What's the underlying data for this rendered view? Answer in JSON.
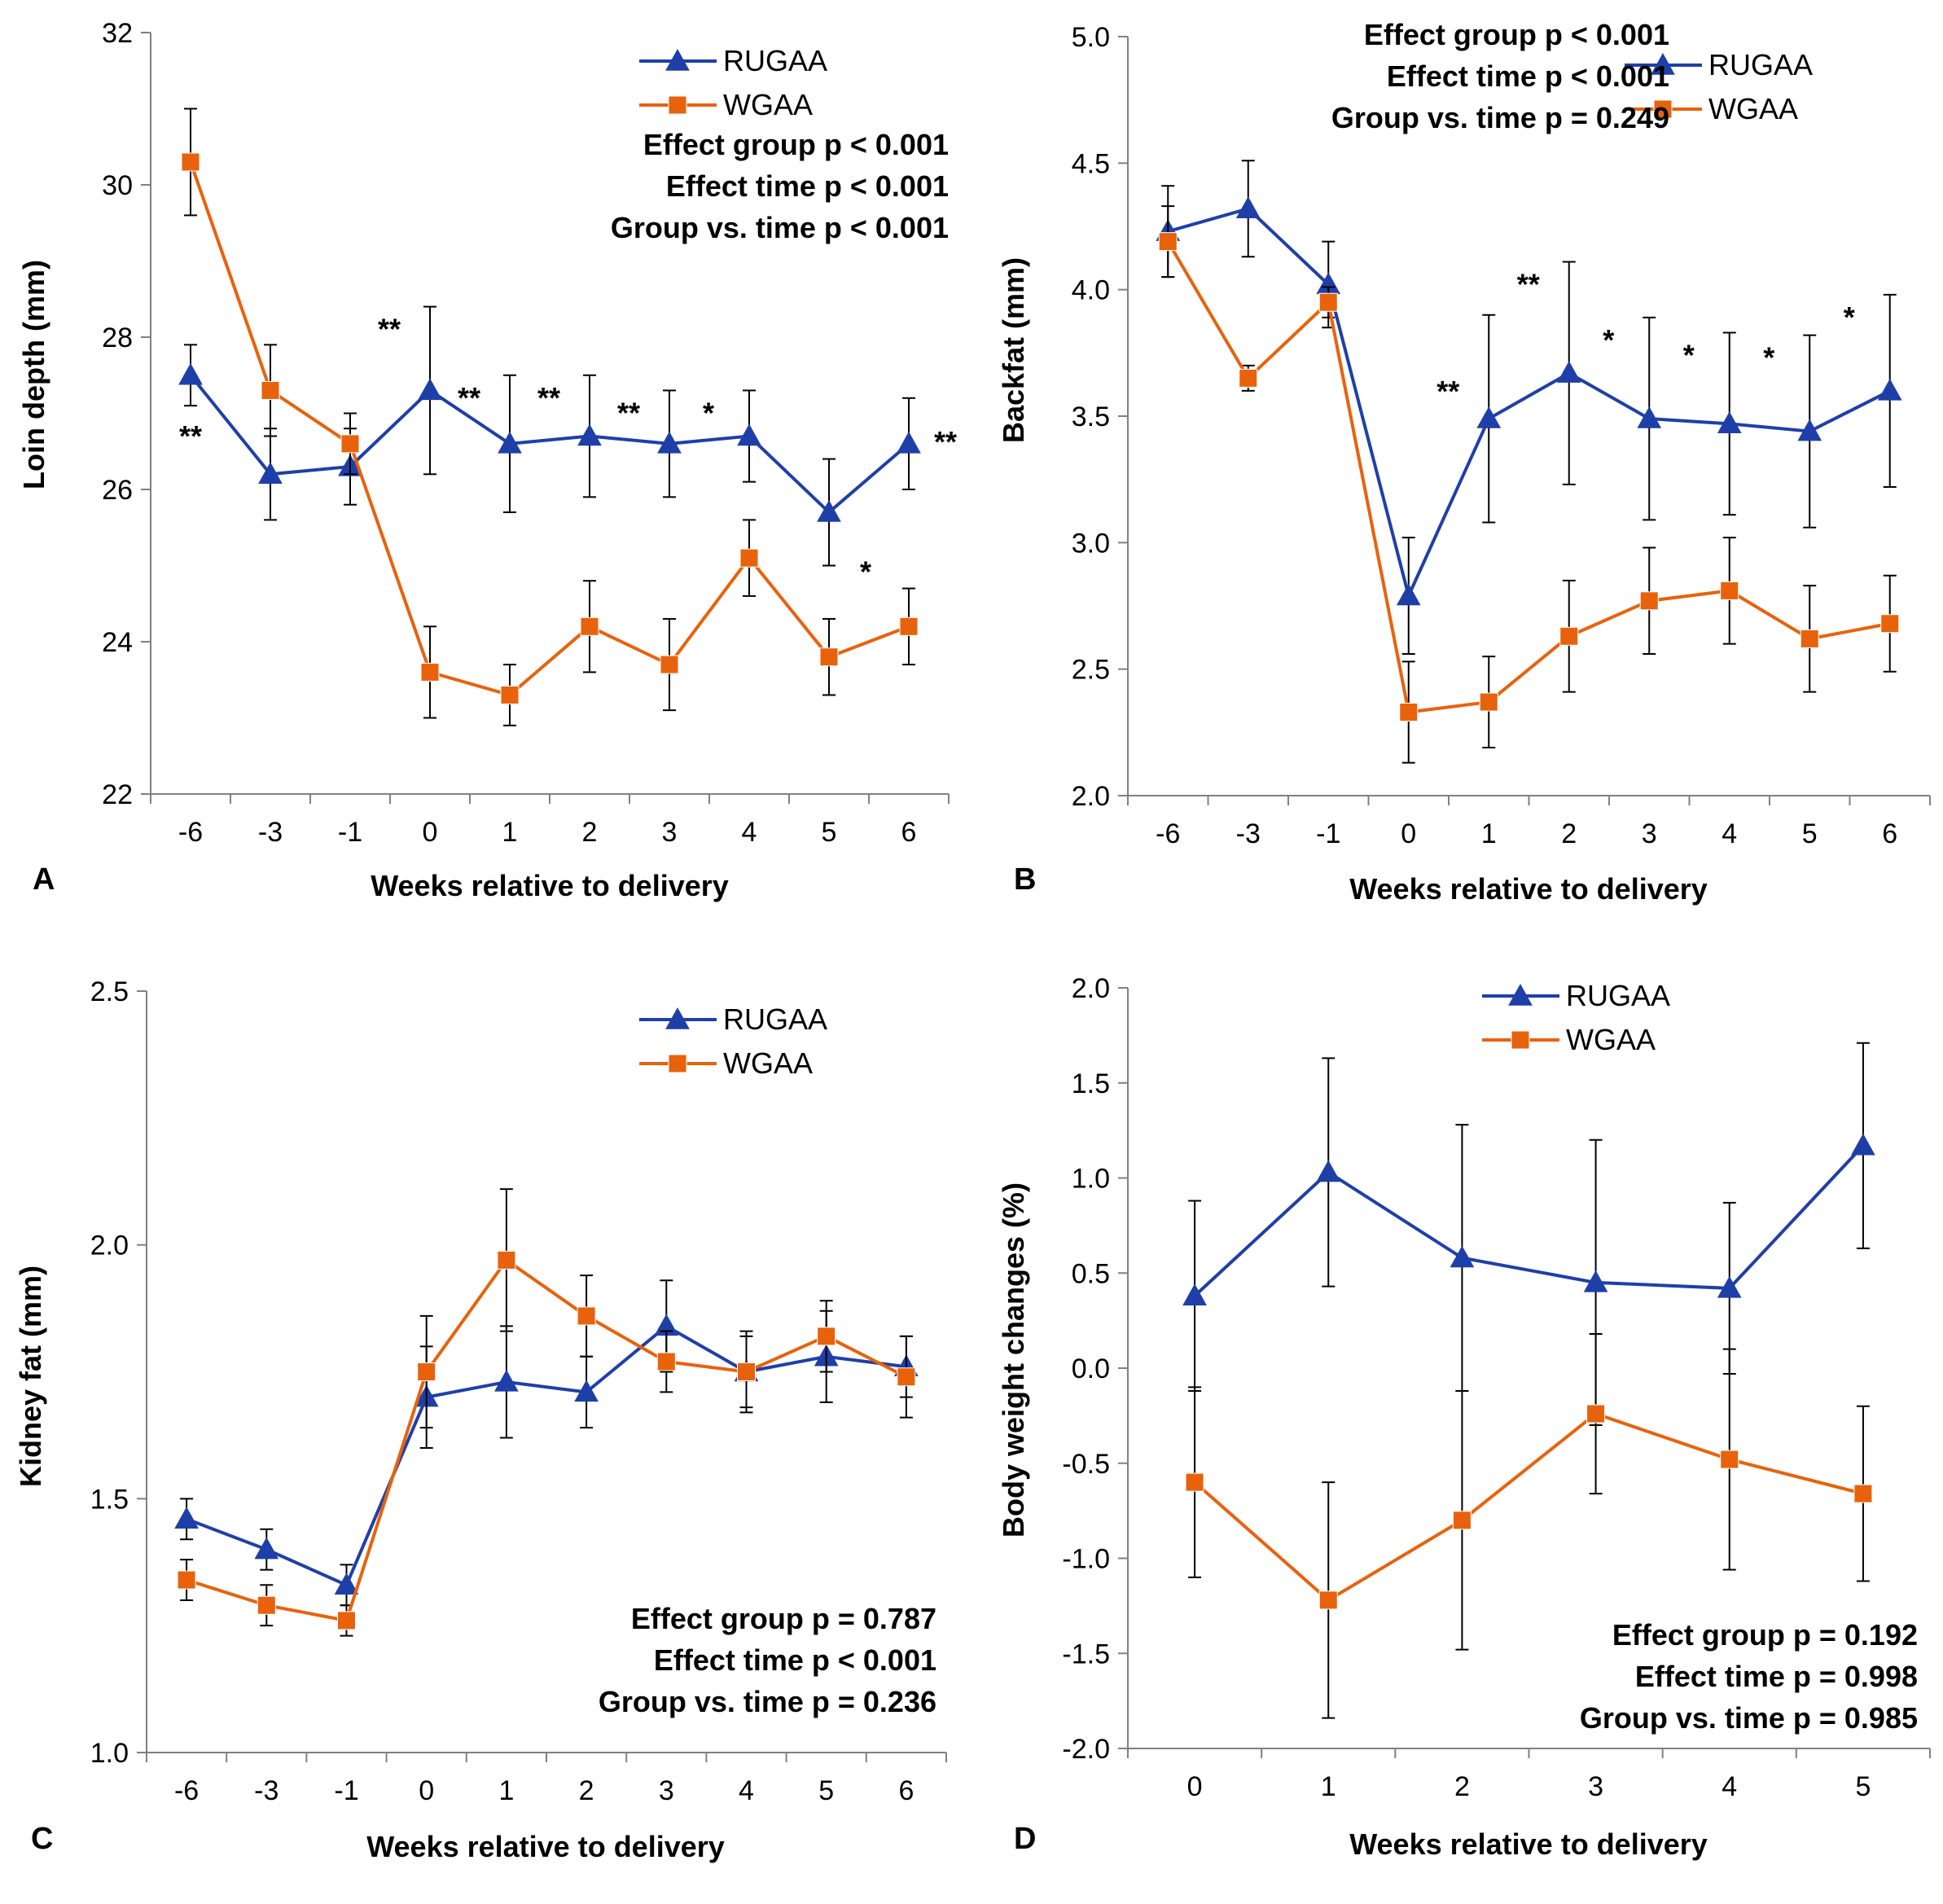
{
  "colors": {
    "RUGAA": "#1f3fa8",
    "WGAA": "#e8620c",
    "axis": "#808080",
    "errorbar": "#000000"
  },
  "chart_data": [
    {
      "panel": "A",
      "type": "line",
      "xlabel": "Weeks relative to delivery",
      "ylabel": "Loin depth (mm)",
      "ylim": [
        22,
        32
      ],
      "yticks": [
        22,
        24,
        26,
        28,
        30,
        32
      ],
      "ytick_labels": [
        "22",
        "24",
        "26",
        "28",
        "30",
        "32"
      ],
      "categories": [
        "-6",
        "-3",
        "-1",
        "0",
        "1",
        "2",
        "3",
        "4",
        "5",
        "6"
      ],
      "legend": [
        "RUGAA",
        "WGAA"
      ],
      "series": [
        {
          "name": "RUGAA",
          "marker": "triangle",
          "values": [
            27.5,
            26.2,
            26.3,
            27.3,
            26.6,
            26.7,
            26.6,
            26.7,
            25.7,
            26.6
          ],
          "err": [
            0.4,
            0.6,
            0.5,
            1.1,
            0.9,
            0.8,
            0.7,
            0.6,
            0.7,
            0.6
          ]
        },
        {
          "name": "WGAA",
          "marker": "square",
          "values": [
            30.3,
            27.3,
            26.6,
            23.6,
            23.3,
            24.2,
            23.7,
            25.1,
            23.8,
            24.2
          ],
          "err": [
            0.7,
            0.6,
            0.4,
            0.6,
            0.4,
            0.6,
            0.6,
            0.5,
            0.5,
            0.5
          ]
        }
      ],
      "stats": [
        "Effect group p < 0.001",
        "Effect time p < 0.001",
        "Group vs. time p < 0.001"
      ],
      "significance": [
        {
          "x": "-6",
          "text": "**"
        },
        {
          "x": "0",
          "text": "**"
        },
        {
          "x": "1",
          "text": "**"
        },
        {
          "x": "2",
          "text": "**"
        },
        {
          "x": "3",
          "text": "**"
        },
        {
          "x": "4",
          "text": "*"
        },
        {
          "x": "5",
          "text": "*"
        },
        {
          "x": "6",
          "text": "**"
        }
      ]
    },
    {
      "panel": "B",
      "type": "line",
      "xlabel": "Weeks relative to delivery",
      "ylabel": "Backfat (mm)",
      "ylim": [
        2.0,
        5.0
      ],
      "yticks": [
        2.0,
        2.5,
        3.0,
        3.5,
        4.0,
        4.5,
        5.0
      ],
      "ytick_labels": [
        "2.0",
        "2.5",
        "3.0",
        "3.5",
        "4.0",
        "4.5",
        "5.0"
      ],
      "categories": [
        "-6",
        "-3",
        "-1",
        "0",
        "1",
        "2",
        "3",
        "4",
        "5",
        "6"
      ],
      "legend": [
        "RUGAA",
        "WGAA"
      ],
      "series": [
        {
          "name": "RUGAA",
          "marker": "triangle",
          "values": [
            4.23,
            4.32,
            4.02,
            2.79,
            3.49,
            3.67,
            3.49,
            3.47,
            3.44,
            3.6
          ],
          "err": [
            0.18,
            0.19,
            0.17,
            0.23,
            0.41,
            0.44,
            0.4,
            0.36,
            0.38,
            0.38
          ]
        },
        {
          "name": "WGAA",
          "marker": "square",
          "values": [
            4.19,
            3.65,
            3.95,
            2.33,
            2.37,
            2.63,
            2.77,
            2.81,
            2.62,
            2.68
          ],
          "err": [
            0.14,
            0.05,
            0.06,
            0.2,
            0.18,
            0.22,
            0.21,
            0.21,
            0.21,
            0.19
          ]
        }
      ],
      "stats": [
        "Effect group p < 0.001",
        "Effect time p < 0.001",
        "Group vs. time p = 0.249"
      ],
      "significance": [
        {
          "x": "1",
          "text": "**"
        },
        {
          "x": "2",
          "text": "**"
        },
        {
          "x": "3",
          "text": "*"
        },
        {
          "x": "4",
          "text": "*"
        },
        {
          "x": "5",
          "text": "*"
        },
        {
          "x": "6",
          "text": "*"
        }
      ]
    },
    {
      "panel": "C",
      "type": "line",
      "xlabel": "Weeks relative to delivery",
      "ylabel": "Kidney fat (mm)",
      "ylim": [
        1.0,
        2.5
      ],
      "yticks": [
        1.0,
        1.5,
        2.0,
        2.5
      ],
      "ytick_labels": [
        "1.0",
        "1.5",
        "2.0",
        "2.5"
      ],
      "categories": [
        "-6",
        "-3",
        "-1",
        "0",
        "1",
        "2",
        "3",
        "4",
        "5",
        "6"
      ],
      "legend": [
        "RUGAA",
        "WGAA"
      ],
      "series": [
        {
          "name": "RUGAA",
          "marker": "triangle",
          "values": [
            1.46,
            1.4,
            1.33,
            1.7,
            1.73,
            1.71,
            1.84,
            1.75,
            1.78,
            1.76
          ],
          "err": [
            0.04,
            0.04,
            0.04,
            0.1,
            0.11,
            0.07,
            0.09,
            0.08,
            0.09,
            0.06
          ]
        },
        {
          "name": "WGAA",
          "marker": "square",
          "values": [
            1.34,
            1.29,
            1.26,
            1.75,
            1.97,
            1.86,
            1.77,
            1.75,
            1.82,
            1.74
          ],
          "err": [
            0.04,
            0.04,
            0.03,
            0.11,
            0.14,
            0.08,
            0.06,
            0.07,
            0.07,
            0.08
          ]
        }
      ],
      "stats": [
        "Effect group p = 0.787",
        "Effect time p < 0.001",
        "Group vs. time p = 0.236"
      ],
      "significance": []
    },
    {
      "panel": "D",
      "type": "line",
      "xlabel": "Weeks relative to delivery",
      "ylabel": "Body weight changes (%)",
      "ylim": [
        -2.0,
        2.0
      ],
      "yticks": [
        -2.0,
        -1.5,
        -1.0,
        -0.5,
        0.0,
        0.5,
        1.0,
        1.5,
        2.0
      ],
      "ytick_labels": [
        "-2.0",
        "-1.5",
        "-1.0",
        "-0.5",
        "0.0",
        "0.5",
        "1.0",
        "1.5",
        "2.0"
      ],
      "categories": [
        "0",
        "1",
        "2",
        "3",
        "4",
        "5"
      ],
      "legend": [
        "RUGAA",
        "WGAA"
      ],
      "series": [
        {
          "name": "RUGAA",
          "marker": "triangle",
          "values": [
            0.38,
            1.03,
            0.58,
            0.45,
            0.42,
            1.17
          ],
          "err": [
            0.5,
            0.6,
            0.7,
            0.75,
            0.45,
            0.54
          ]
        },
        {
          "name": "WGAA",
          "marker": "square",
          "values": [
            -0.6,
            -1.22,
            -0.8,
            -0.24,
            -0.48,
            -0.66
          ],
          "err": [
            0.5,
            0.62,
            0.68,
            0.42,
            0.58,
            0.46
          ]
        }
      ],
      "stats": [
        "Effect group p = 0.192",
        "Effect time p = 0.998",
        "Group vs. time p = 0.985"
      ],
      "significance": []
    }
  ]
}
